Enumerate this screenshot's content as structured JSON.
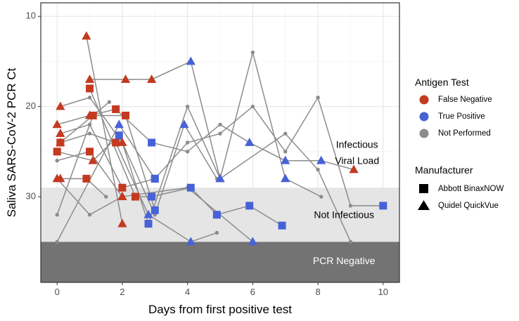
{
  "chart_data": {
    "type": "scatter",
    "xlabel": "Days from first positive test",
    "ylabel": "Saliva SARS-CoV-2 PCR Ct",
    "xlim": [
      -0.5,
      10.5
    ],
    "ylim": [
      8.5,
      39.5
    ],
    "y_reversed": true,
    "x_ticks": [
      0,
      2,
      4,
      6,
      8,
      10
    ],
    "y_ticks": [
      10,
      20,
      30
    ],
    "grid": true,
    "bands": [
      {
        "label": "PCR Negative",
        "y_from": 35,
        "y_to": 39.5,
        "color": "#737373"
      },
      {
        "label": "Not  Infectious",
        "y_from": 29,
        "y_to": 35,
        "color": "#e5e5e5"
      }
    ],
    "annotations": [
      {
        "text": "Infectious",
        "x": 9.2,
        "y": 24.3
      },
      {
        "text": "Viral Load",
        "x": 9.2,
        "y": 26.1
      },
      {
        "text": "Not  Infectious",
        "x": 8.8,
        "y": 32.1
      },
      {
        "text": "PCR Negative",
        "x": 8.8,
        "y": 37.2
      }
    ],
    "legend": {
      "placement": "right",
      "groups": [
        {
          "title": "Antigen Test",
          "entries": [
            {
              "label": "False Negative",
              "color": "#c33a21"
            },
            {
              "label": "True Positive",
              "color": "#4762d6"
            },
            {
              "label": "Not Performed",
              "color": "#8c8c8c"
            }
          ]
        },
        {
          "title": "Manufacturer",
          "entries": [
            {
              "label": "Abbott BinaxNOW",
              "shape": "square"
            },
            {
              "label": "Quidel QuickVue",
              "shape": "triangle"
            }
          ]
        }
      ]
    },
    "colors": {
      "fn": "#c33a21",
      "tp": "#4762d6",
      "np": "#8c8c8c",
      "line": "#8c8c8c"
    },
    "subjects": [
      {
        "points": [
          [
            0.9,
            12.2,
            "fn",
            "t"
          ],
          [
            2.0,
            33.0,
            "fn",
            "t"
          ]
        ]
      },
      {
        "points": [
          [
            1.0,
            17.0,
            "fn",
            "t"
          ],
          [
            2.1,
            17.0,
            "fn",
            "t"
          ],
          [
            2.9,
            17.0,
            "fn",
            "t"
          ],
          [
            4.1,
            15.0,
            "tp",
            "t"
          ],
          [
            5.0,
            28.0,
            "tp",
            "t"
          ],
          [
            6.0,
            14.0,
            "np",
            "c"
          ],
          [
            7.0,
            28.0,
            "tp",
            "t"
          ],
          [
            8.1,
            30.0,
            "np",
            "c"
          ]
        ]
      },
      {
        "points": [
          [
            1.0,
            18.0,
            "fn",
            "s"
          ],
          [
            2.4,
            30.0,
            "fn",
            "s"
          ],
          [
            2.9,
            30.0,
            "tp",
            "s"
          ],
          [
            4.1,
            29.0,
            "tp",
            "s"
          ],
          [
            4.9,
            32.0,
            "tp",
            "s"
          ],
          [
            5.9,
            31.0,
            "tp",
            "s"
          ],
          [
            6.9,
            33.2,
            "tp",
            "s"
          ]
        ]
      },
      {
        "points": [
          [
            0.1,
            20.0,
            "fn",
            "t"
          ],
          [
            1.0,
            19.0,
            "np",
            "c"
          ],
          [
            2.0,
            24.0,
            "fn",
            "t"
          ],
          [
            2.8,
            33.0,
            "tp",
            "s"
          ],
          [
            4.0,
            20.0,
            "np",
            "c"
          ],
          [
            5.0,
            28.0,
            "tp",
            "t"
          ],
          [
            7.0,
            23.0,
            "np",
            "c"
          ],
          [
            8.0,
            27.0,
            "np",
            "c"
          ],
          [
            9.0,
            35.0,
            "np",
            "c"
          ]
        ]
      },
      {
        "points": [
          [
            0.0,
            22.0,
            "fn",
            "t"
          ],
          [
            1.0,
            21.0,
            "fn",
            "t"
          ],
          [
            1.8,
            20.3,
            "fn",
            "s"
          ],
          [
            2.9,
            24.0,
            "tp",
            "s"
          ],
          [
            4.0,
            25.0,
            "np",
            "c"
          ],
          [
            5.0,
            22.0,
            "np",
            "c"
          ],
          [
            5.9,
            24.0,
            "tp",
            "t"
          ],
          [
            7.0,
            26.0,
            "tp",
            "t"
          ],
          [
            8.1,
            26.0,
            "tp",
            "t"
          ],
          [
            9.1,
            27.0,
            "fn",
            "t"
          ]
        ]
      },
      {
        "points": [
          [
            0.1,
            23.0,
            "fn",
            "t"
          ],
          [
            1.0,
            22.0,
            "np",
            "c"
          ],
          [
            2.0,
            29.0,
            "fn",
            "s"
          ],
          [
            3.0,
            28.0,
            "tp",
            "s"
          ],
          [
            4.0,
            24.0,
            "np",
            "c"
          ],
          [
            5.0,
            23.0,
            "np",
            "c"
          ],
          [
            6.0,
            20.0,
            "np",
            "c"
          ],
          [
            7.0,
            25.0,
            "np",
            "c"
          ],
          [
            8.0,
            19.0,
            "np",
            "c"
          ],
          [
            9.0,
            31.0,
            "np",
            "c"
          ],
          [
            10.0,
            31.0,
            "tp",
            "s"
          ]
        ]
      },
      {
        "points": [
          [
            0.1,
            24.0,
            "fn",
            "s"
          ],
          [
            1.0,
            23.0,
            "np",
            "c"
          ],
          [
            1.8,
            24.0,
            "fn",
            "s"
          ],
          [
            2.8,
            32.0,
            "tp",
            "t"
          ],
          [
            4.1,
            35.0,
            "tp",
            "t"
          ],
          [
            4.9,
            34.0,
            "np",
            "c"
          ]
        ]
      },
      {
        "points": [
          [
            0.0,
            25.0,
            "fn",
            "s"
          ],
          [
            1.1,
            26.0,
            "fn",
            "t"
          ],
          [
            1.9,
            23.2,
            "tp",
            "s"
          ],
          [
            3.0,
            32.0,
            "np",
            "c"
          ],
          [
            3.9,
            22.0,
            "tp",
            "t"
          ],
          [
            4.9,
            28.0,
            "np",
            "c"
          ]
        ]
      },
      {
        "points": [
          [
            0.0,
            26.0,
            "np",
            "c"
          ],
          [
            1.0,
            25.0,
            "fn",
            "s"
          ],
          [
            2.0,
            30.0,
            "fn",
            "t"
          ],
          [
            4.0,
            29.0,
            "np",
            "c"
          ],
          [
            6.0,
            35.0,
            "tp",
            "t"
          ]
        ]
      },
      {
        "points": [
          [
            0.0,
            28.0,
            "fn",
            "t"
          ],
          [
            1.0,
            32.0,
            "np",
            "c"
          ],
          [
            2.0,
            30.0,
            "fn",
            "t"
          ]
        ]
      },
      {
        "points": [
          [
            0.1,
            28.0,
            "fn",
            "t"
          ],
          [
            0.9,
            28.0,
            "fn",
            "s"
          ],
          [
            1.5,
            30.0,
            "np",
            "c"
          ]
        ]
      },
      {
        "points": [
          [
            0.0,
            32.0,
            "np",
            "c"
          ],
          [
            1.1,
            21.0,
            "fn",
            "s"
          ],
          [
            2.1,
            21.0,
            "fn",
            "s"
          ],
          [
            3.0,
            31.5,
            "tp",
            "s"
          ]
        ]
      },
      {
        "points": [
          [
            0.0,
            35.0,
            "np",
            "c"
          ],
          [
            1.9,
            22.0,
            "tp",
            "t"
          ],
          [
            3.0,
            28.0,
            "tp",
            "s"
          ]
        ]
      },
      {
        "points": [
          [
            0.1,
            24.0,
            "fn",
            "t"
          ],
          [
            1.6,
            19.5,
            "np",
            "c"
          ]
        ]
      }
    ]
  }
}
